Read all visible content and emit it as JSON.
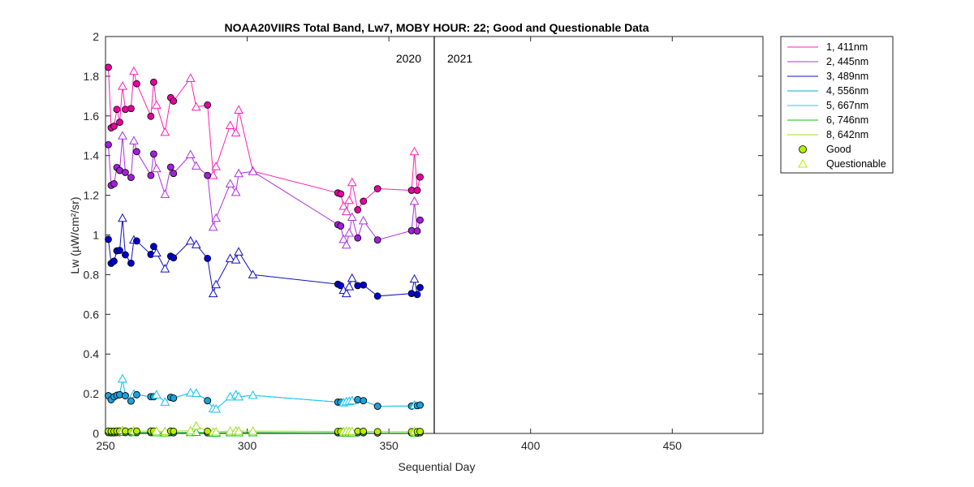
{
  "chart_data": {
    "type": "line",
    "title": "NOAA20VIIRS Total Band,  Lw7, MOBY HOUR: 22;  Good and Questionable Data",
    "xlabel": "Sequential Day",
    "ylabel": "Lw (µW/cm²/sr)",
    "xlim": [
      250,
      482
    ],
    "ylim": [
      0,
      2
    ],
    "xticks": [
      250,
      300,
      350,
      400,
      450
    ],
    "yticks": [
      0,
      0.2,
      0.4,
      0.6,
      0.8,
      1,
      1.2,
      1.4,
      1.6,
      1.8,
      2
    ],
    "ytick_labels": [
      "0",
      "0.2",
      "0.4",
      "0.6",
      "0.8",
      "1",
      "1.2",
      "1.4",
      "1.6",
      "1.8",
      "2"
    ],
    "year_divider_x": 366,
    "year_labels": [
      {
        "text": "2020",
        "x": 366,
        "side": "left"
      },
      {
        "text": "2021",
        "x": 366,
        "side": "right"
      }
    ],
    "grid": false,
    "legend_position": "outside-top-right",
    "series": [
      {
        "name": "1, 411nm",
        "color": "#ff1fb8",
        "marker_fill": "#e6009e",
        "x": [
          251,
          252,
          253,
          254,
          255,
          256,
          257,
          259,
          260,
          261,
          266,
          267,
          268,
          271,
          273,
          274,
          280,
          282,
          286,
          288,
          289,
          294,
          296,
          297,
          302,
          332,
          333,
          334,
          335,
          336,
          337,
          339,
          341,
          346,
          358,
          359,
          360,
          361
        ],
        "y": [
          1.845,
          1.54,
          1.548,
          1.633,
          1.568,
          1.75,
          1.633,
          1.637,
          1.825,
          1.762,
          1.598,
          1.77,
          1.655,
          1.518,
          1.692,
          1.675,
          1.79,
          1.645,
          1.655,
          1.3,
          1.345,
          1.552,
          1.515,
          1.63,
          1.322,
          1.212,
          1.207,
          1.145,
          1.118,
          1.175,
          1.265,
          1.127,
          1.17,
          1.233,
          1.225,
          1.42,
          1.225,
          1.292
        ],
        "q": [
          0,
          0,
          0,
          0,
          0,
          1,
          0,
          0,
          1,
          0,
          0,
          0,
          1,
          1,
          0,
          0,
          1,
          1,
          0,
          1,
          1,
          1,
          1,
          1,
          1,
          0,
          0,
          1,
          1,
          1,
          1,
          0,
          0,
          0,
          0,
          1,
          0,
          0
        ]
      },
      {
        "name": "2, 445nm",
        "color": "#b030e0",
        "marker_fill": "#a020d8",
        "x": [
          251,
          252,
          253,
          254,
          255,
          256,
          257,
          259,
          260,
          261,
          266,
          267,
          268,
          271,
          273,
          274,
          280,
          282,
          286,
          288,
          289,
          294,
          296,
          297,
          302,
          332,
          333,
          334,
          335,
          336,
          337,
          339,
          341,
          346,
          358,
          359,
          360,
          361
        ],
        "y": [
          1.455,
          1.25,
          1.258,
          1.34,
          1.325,
          1.5,
          1.315,
          1.29,
          1.475,
          1.42,
          1.3,
          1.408,
          1.335,
          1.205,
          1.342,
          1.31,
          1.405,
          1.348,
          1.3,
          1.04,
          1.085,
          1.258,
          1.215,
          1.31,
          1.32,
          1.052,
          1.045,
          0.978,
          0.95,
          1.01,
          1.09,
          0.985,
          1.072,
          0.975,
          1.022,
          1.17,
          1.02,
          1.075
        ],
        "q": [
          0,
          0,
          0,
          0,
          0,
          1,
          0,
          0,
          1,
          0,
          0,
          0,
          1,
          1,
          0,
          0,
          1,
          1,
          0,
          1,
          1,
          1,
          1,
          1,
          1,
          0,
          0,
          1,
          1,
          1,
          1,
          0,
          1,
          0,
          0,
          1,
          0,
          0
        ]
      },
      {
        "name": "3, 489nm",
        "color": "#1010c0",
        "marker_fill": "#0000cc",
        "x": [
          251,
          252,
          253,
          254,
          255,
          256,
          257,
          259,
          260,
          261,
          266,
          267,
          268,
          271,
          273,
          274,
          280,
          282,
          286,
          288,
          289,
          294,
          296,
          297,
          302,
          332,
          333,
          334,
          335,
          336,
          337,
          339,
          341,
          346,
          358,
          359,
          360,
          361
        ],
        "y": [
          0.978,
          0.857,
          0.868,
          0.92,
          0.922,
          1.085,
          0.9,
          0.858,
          0.975,
          0.97,
          0.902,
          0.942,
          0.91,
          0.83,
          0.893,
          0.885,
          0.97,
          0.952,
          0.882,
          0.705,
          0.75,
          0.882,
          0.875,
          0.915,
          0.8,
          0.752,
          0.745,
          0.722,
          0.705,
          0.74,
          0.782,
          0.745,
          0.748,
          0.692,
          0.705,
          0.778,
          0.7,
          0.735
        ],
        "q": [
          0,
          0,
          0,
          0,
          0,
          1,
          0,
          0,
          1,
          0,
          0,
          0,
          1,
          1,
          0,
          0,
          1,
          1,
          0,
          1,
          1,
          1,
          1,
          1,
          1,
          0,
          0,
          1,
          1,
          1,
          1,
          0,
          0,
          0,
          0,
          1,
          0,
          0
        ]
      },
      {
        "name": "4, 556nm",
        "color": "#00b0c8",
        "marker_fill": "#00a0c0",
        "x": [
          251,
          252,
          253,
          254,
          255,
          256,
          257,
          259,
          260,
          261,
          266,
          267,
          268,
          271,
          273,
          274,
          280,
          282,
          286,
          288,
          289,
          294,
          296,
          297,
          302,
          332,
          333,
          334,
          335,
          336,
          337,
          339,
          341,
          346,
          358,
          359,
          360,
          361
        ],
        "y": [
          0.19,
          0.17,
          0.185,
          0.192,
          0.195,
          0.275,
          0.19,
          0.163,
          0.198,
          0.195,
          0.185,
          0.185,
          0.195,
          0.158,
          0.182,
          0.178,
          0.205,
          0.203,
          0.165,
          0.125,
          0.123,
          0.185,
          0.195,
          0.185,
          0.192,
          0.158,
          0.157,
          0.155,
          0.16,
          0.162,
          0.165,
          0.17,
          0.165,
          0.137,
          0.138,
          0.142,
          0.14,
          0.143
        ],
        "q": [
          0,
          0,
          0,
          0,
          0,
          1,
          0,
          0,
          1,
          0,
          0,
          0,
          1,
          1,
          0,
          0,
          1,
          1,
          0,
          1,
          1,
          1,
          1,
          1,
          1,
          0,
          0,
          1,
          1,
          1,
          1,
          0,
          0,
          0,
          0,
          1,
          0,
          0
        ]
      },
      {
        "name": "5, 667nm",
        "color": "#20c8f0",
        "marker_fill": "#1ea0dc",
        "x": [
          251,
          252,
          253,
          254,
          255,
          256,
          257,
          259,
          260,
          261,
          266,
          267,
          268,
          271,
          273,
          274,
          280,
          282,
          286,
          288,
          289,
          294,
          296,
          297,
          302,
          332,
          333,
          334,
          335,
          336,
          337,
          339,
          341,
          346,
          358,
          359,
          360,
          361
        ],
        "y": [
          0.19,
          0.17,
          0.185,
          0.192,
          0.195,
          0.275,
          0.19,
          0.163,
          0.198,
          0.195,
          0.185,
          0.185,
          0.195,
          0.158,
          0.182,
          0.178,
          0.205,
          0.203,
          0.165,
          0.125,
          0.123,
          0.185,
          0.195,
          0.185,
          0.192,
          0.158,
          0.157,
          0.155,
          0.16,
          0.162,
          0.165,
          0.17,
          0.165,
          0.137,
          0.138,
          0.142,
          0.14,
          0.143
        ],
        "q": [
          0,
          0,
          0,
          0,
          0,
          1,
          0,
          0,
          1,
          0,
          0,
          0,
          1,
          1,
          0,
          0,
          1,
          1,
          0,
          1,
          1,
          1,
          1,
          1,
          1,
          0,
          0,
          1,
          1,
          1,
          1,
          0,
          0,
          0,
          0,
          1,
          0,
          0
        ]
      },
      {
        "name": "6, 746nm",
        "color": "#10c010",
        "marker_fill": "#30c030",
        "x": [
          251,
          252,
          253,
          254,
          255,
          256,
          257,
          259,
          260,
          261,
          266,
          267,
          268,
          271,
          273,
          274,
          280,
          282,
          286,
          288,
          289,
          294,
          296,
          297,
          302,
          332,
          333,
          334,
          335,
          336,
          337,
          339,
          341,
          346,
          358,
          359,
          360,
          361
        ],
        "y": [
          0.004,
          0.003,
          0.003,
          0.004,
          0.004,
          0.006,
          0.004,
          0.003,
          0.005,
          0.004,
          0.004,
          0.004,
          0.004,
          0.003,
          0.004,
          0.003,
          0.005,
          0.006,
          0.003,
          0.002,
          0.002,
          0.004,
          0.004,
          0.004,
          0.004,
          0.003,
          0.003,
          0.003,
          0.003,
          0.003,
          0.003,
          0.003,
          0.003,
          0.002,
          0.002,
          0.003,
          0.002,
          0.003
        ],
        "q": [
          0,
          0,
          0,
          0,
          0,
          1,
          0,
          0,
          1,
          0,
          0,
          0,
          1,
          1,
          0,
          0,
          1,
          1,
          0,
          1,
          1,
          1,
          1,
          1,
          1,
          0,
          0,
          1,
          1,
          1,
          1,
          0,
          0,
          0,
          0,
          1,
          0,
          0
        ]
      },
      {
        "name": "8, 642nm",
        "color": "#a0e020",
        "marker_fill": "#b4f000",
        "x": [
          251,
          252,
          253,
          254,
          255,
          256,
          257,
          259,
          260,
          261,
          266,
          267,
          268,
          271,
          273,
          274,
          280,
          282,
          286,
          288,
          289,
          294,
          296,
          297,
          302,
          332,
          333,
          334,
          335,
          336,
          337,
          339,
          341,
          346,
          358,
          359,
          360,
          361
        ],
        "y": [
          0.012,
          0.011,
          0.011,
          0.012,
          0.012,
          0.016,
          0.012,
          0.01,
          0.013,
          0.012,
          0.012,
          0.012,
          0.012,
          0.01,
          0.012,
          0.011,
          0.014,
          0.038,
          0.011,
          0.008,
          0.008,
          0.012,
          0.013,
          0.012,
          0.012,
          0.01,
          0.01,
          0.01,
          0.01,
          0.01,
          0.011,
          0.011,
          0.011,
          0.009,
          0.009,
          0.01,
          0.009,
          0.01
        ],
        "q": [
          0,
          0,
          0,
          0,
          0,
          1,
          0,
          0,
          1,
          0,
          0,
          0,
          1,
          1,
          0,
          0,
          1,
          1,
          0,
          1,
          1,
          1,
          1,
          1,
          1,
          0,
          0,
          1,
          1,
          1,
          1,
          0,
          0,
          0,
          0,
          1,
          0,
          0
        ]
      }
    ],
    "legend_markers": [
      {
        "name": "Good",
        "shape": "circle",
        "fill": "#b4f000",
        "stroke": "#000000"
      },
      {
        "name": "Questionable",
        "shape": "triangle",
        "fill": "none",
        "stroke": "#b4f000"
      }
    ]
  }
}
